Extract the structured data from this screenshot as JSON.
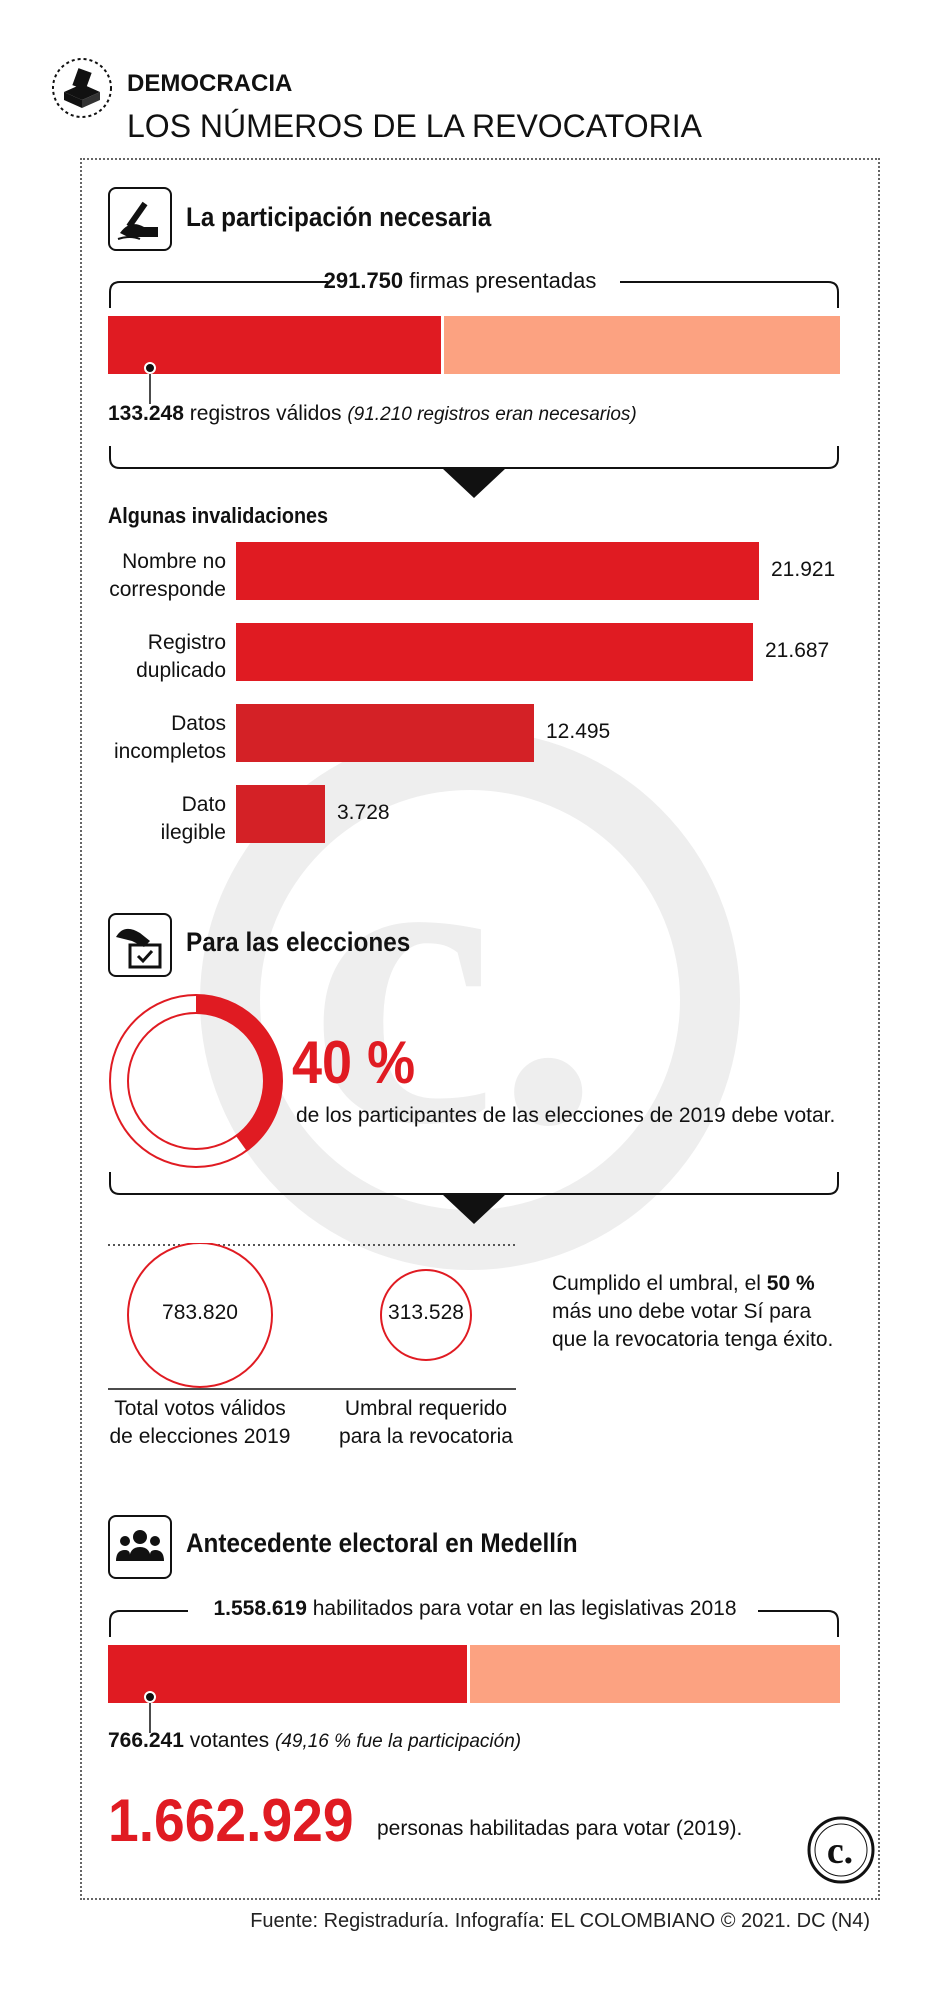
{
  "header": {
    "kicker": "DEMOCRACIA",
    "title": "LOS NÚMEROS DE LA REVOCATORIA"
  },
  "section1": {
    "title": "La participación necesaria",
    "total_value": "291.750",
    "total_text": "firmas presentadas",
    "valid_value": "133.248",
    "valid_text": "registros válidos",
    "valid_note": "(91.210 registros eran necesarios)"
  },
  "invalidations": {
    "title": "Algunas invalidaciones",
    "rows": [
      {
        "label_1": "Nombre no",
        "label_2": "corresponde",
        "value_text": "21.921"
      },
      {
        "label_1": "Registro",
        "label_2": "duplicado",
        "value_text": "21.687"
      },
      {
        "label_1": "Datos",
        "label_2": "incompletos",
        "value_text": "12.495"
      },
      {
        "label_1": "Dato",
        "label_2": "ilegible",
        "value_text": "3.728"
      }
    ]
  },
  "section2": {
    "title": "Para las elecciones",
    "percent": "40 %",
    "percent_text": "de los participantes de las elecciones de 2019 debe votar.",
    "circle1_value": "783.820",
    "circle1_caption_1": "Total votos válidos",
    "circle1_caption_2": "de elecciones 2019",
    "circle2_value": "313.528",
    "circle2_caption_1": "Umbral requerido",
    "circle2_caption_2": "para la revocatoria",
    "note_pre": "Cumplido el umbral, el",
    "note_bold": "50 %",
    "note_line2": "más uno debe votar Sí para",
    "note_line3": "que la revocatoria tenga éxito."
  },
  "section3": {
    "title": "Antecedente electoral en Medellín",
    "total_value": "1.558.619",
    "total_text": "habilitados para votar en las legislativas 2018",
    "voters_value": "766.241",
    "voters_text": "votantes",
    "voters_note": "(49,16 % fue la participación)",
    "big_value": "1.662.929",
    "big_text": "personas habilitadas para votar (2019)."
  },
  "footer": {
    "source": "Fuente: Registraduría. Infografía: EL COLOMBIANO © 2021. DC (N4)"
  },
  "colors": {
    "red": "#e01b22",
    "salmon": "#fca281",
    "dark_red": "#d42126",
    "black": "#111111",
    "watermark": "#eeeeee"
  },
  "icons": [
    "ballot-box-icon",
    "signing-hand-icon",
    "voting-hand-icon",
    "people-group-icon",
    "el-colombiano-logo-icon"
  ],
  "chart_data": [
    {
      "type": "bar",
      "title": "La participación necesaria",
      "categories": [
        "registros válidos",
        "firmas presentadas"
      ],
      "values": [
        133248,
        291750
      ]
    },
    {
      "type": "bar",
      "title": "Algunas invalidaciones",
      "categories": [
        "Nombre no corresponde",
        "Registro duplicado",
        "Datos incompletos",
        "Dato ilegible"
      ],
      "values": [
        21921,
        21687,
        12495,
        3728
      ]
    },
    {
      "type": "pie",
      "title": "Para las elecciones",
      "values": [
        40,
        60
      ]
    },
    {
      "type": "bar",
      "title": "Antecedente electoral en Medellín",
      "categories": [
        "votantes",
        "habilitados para votar en las legislativas 2018"
      ],
      "values": [
        766241,
        1558619
      ]
    }
  ]
}
